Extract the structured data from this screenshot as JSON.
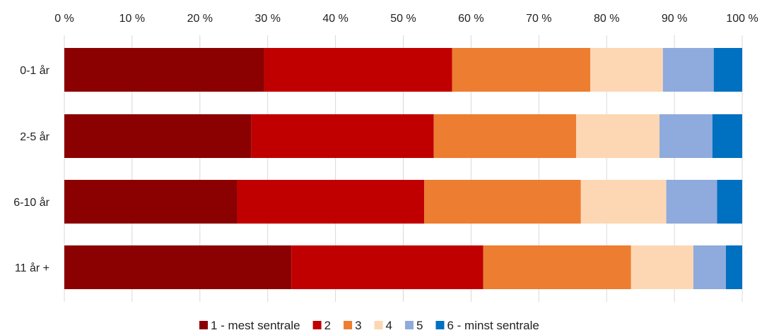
{
  "chart_data": {
    "type": "bar",
    "orientation": "horizontal",
    "stacked": "percent",
    "title": "",
    "xlabel": "",
    "ylabel": "",
    "xlim": [
      0,
      100
    ],
    "x_ticks": [
      "0 %",
      "10 %",
      "20 %",
      "30 %",
      "40 %",
      "50 %",
      "60 %",
      "70 %",
      "80 %",
      "90 %",
      "100 %"
    ],
    "x_axis_position": "top",
    "grid": true,
    "legend_position": "bottom",
    "categories": [
      "0-1 år",
      "2-5 år",
      "6-10 år",
      "11 år +"
    ],
    "series": [
      {
        "name": "1 - mest sentrale",
        "color": "#8b0000",
        "values": [
          29.5,
          27.6,
          25.5,
          33.5
        ]
      },
      {
        "name": "2",
        "color": "#c00000",
        "values": [
          27.7,
          26.9,
          27.6,
          28.3
        ]
      },
      {
        "name": "3",
        "color": "#ed7d31",
        "values": [
          20.4,
          21.0,
          23.1,
          21.8
        ]
      },
      {
        "name": "4",
        "color": "#fdd7b4",
        "values": [
          10.7,
          12.3,
          12.6,
          9.2
        ]
      },
      {
        "name": "5",
        "color": "#8faadc",
        "values": [
          7.5,
          7.8,
          7.5,
          4.8
        ]
      },
      {
        "name": "6 - minst sentrale",
        "color": "#0070c0",
        "values": [
          4.2,
          4.4,
          3.7,
          2.4
        ]
      }
    ]
  }
}
